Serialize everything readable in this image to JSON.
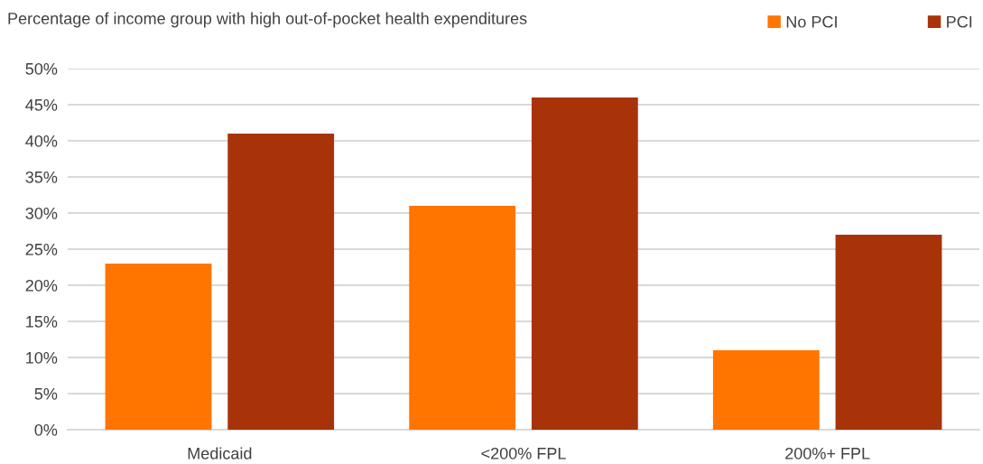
{
  "chart_data": {
    "type": "bar",
    "title": "Percentage of income group with high out-of-pocket health expenditures",
    "categories": [
      "Medicaid",
      "<200% FPL",
      "200%+ FPL"
    ],
    "series": [
      {
        "name": "No PCI",
        "color": "#ff7500",
        "values": [
          23,
          31,
          11
        ]
      },
      {
        "name": "PCI",
        "color": "#a83308",
        "values": [
          41,
          46,
          27
        ]
      }
    ],
    "ylim": [
      0,
      50
    ],
    "yticks": [
      {
        "value": 0,
        "label": "0%"
      },
      {
        "value": 5,
        "label": "5%"
      },
      {
        "value": 10,
        "label": "10%"
      },
      {
        "value": 15,
        "label": "15%"
      },
      {
        "value": 20,
        "label": "20%"
      },
      {
        "value": 25,
        "label": "25%"
      },
      {
        "value": 30,
        "label": "30%"
      },
      {
        "value": 35,
        "label": "35%"
      },
      {
        "value": 40,
        "label": "40%"
      },
      {
        "value": 45,
        "label": "45%"
      },
      {
        "value": 50,
        "label": "50%"
      }
    ],
    "grid": "y",
    "legend": "top right"
  }
}
